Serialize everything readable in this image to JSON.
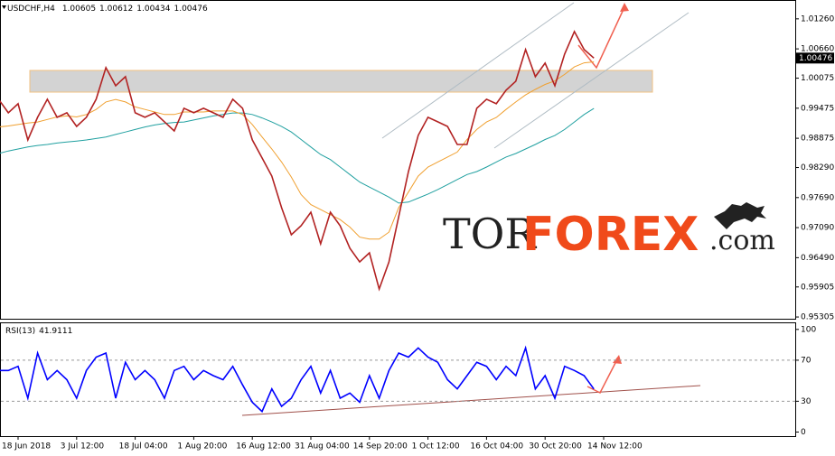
{
  "watermark": {
    "prefix": "TOR",
    "brand": "FOREX",
    "suffix": ".com"
  },
  "chart_data": [
    {
      "type": "line",
      "title": "USDCHF,H4",
      "ohlc": [
        1.00605,
        1.00612,
        1.00434,
        1.00476
      ],
      "last_price": 1.00476,
      "ylim": [
        0.9527,
        1.016
      ],
      "yticks": [
        {
          "value": 1.0126,
          "label": "1.01260"
        },
        {
          "value": 1.0066,
          "label": "1.00660"
        },
        {
          "value": 1.00075,
          "label": "1.00075"
        },
        {
          "value": 0.99475,
          "label": "0.99475"
        },
        {
          "value": 0.98875,
          "label": "0.98875"
        },
        {
          "value": 0.9829,
          "label": "0.98290"
        },
        {
          "value": 0.9769,
          "label": "0.97690"
        },
        {
          "value": 0.9709,
          "label": "0.97090"
        },
        {
          "value": 0.9649,
          "label": "0.96490"
        },
        {
          "value": 0.95905,
          "label": "0.95905"
        },
        {
          "value": 0.95305,
          "label": "0.95305"
        }
      ],
      "grid": false,
      "series": [
        {
          "color": "#b22222",
          "values": [
            0.99654,
            0.99383,
            0.99564,
            0.98842,
            0.99293,
            0.99654,
            0.99293,
            0.99383,
            0.99112,
            0.99293,
            0.99654,
            1.00285,
            0.99924,
            1.00105,
            0.99383,
            0.99293,
            0.99383,
            0.99203,
            0.99022,
            0.99473,
            0.99383,
            0.99473,
            0.99383,
            0.99293,
            0.99654,
            0.99473,
            0.98842,
            0.98481,
            0.9812,
            0.97488,
            0.96947,
            0.97127,
            0.97398,
            0.96766,
            0.97398,
            0.97127,
            0.96676,
            0.96405,
            0.96586,
            0.95864,
            0.96405,
            0.97308,
            0.9821,
            0.98932,
            0.99293,
            0.99203,
            0.99112,
            0.98751,
            0.98751,
            0.99473,
            0.99654,
            0.99564,
            0.99834,
            1.00015,
            1.00646,
            1.00105,
            1.00376,
            0.99924,
            1.00556,
            1.01007,
            1.00646,
            1.00476,
            null
          ]
        },
        {
          "color": "#f0a030",
          "values": [
            0.991,
            0.9912,
            0.9915,
            0.9918,
            0.992,
            0.9925,
            0.993,
            0.9932,
            0.993,
            0.9935,
            0.9945,
            0.996,
            0.9965,
            0.996,
            0.995,
            0.9945,
            0.994,
            0.9935,
            0.9935,
            0.994,
            0.994,
            0.994,
            0.9942,
            0.9942,
            0.9942,
            0.9935,
            0.9915,
            0.989,
            0.9866,
            0.984,
            0.981,
            0.9775,
            0.9755,
            0.9745,
            0.9735,
            0.9725,
            0.971,
            0.969,
            0.9686,
            0.9686,
            0.97,
            0.9749,
            0.978,
            0.9812,
            0.983,
            0.984,
            0.985,
            0.986,
            0.9885,
            0.9905,
            0.992,
            0.9929,
            0.9945,
            0.996,
            0.9974,
            0.9985,
            0.9995,
            1.0002,
            1.0015,
            1.003,
            1.0038,
            1.004,
            null
          ]
        },
        {
          "color": "#20a0a0",
          "values": [
            0.9857,
            0.9862,
            0.9866,
            0.987,
            0.9873,
            0.9875,
            0.9878,
            0.988,
            0.9882,
            0.9884,
            0.9887,
            0.989,
            0.9895,
            0.99,
            0.9905,
            0.991,
            0.9914,
            0.9917,
            0.9919,
            0.992,
            0.9924,
            0.9928,
            0.9932,
            0.9935,
            0.9938,
            0.9938,
            0.9935,
            0.9928,
            0.992,
            0.9911,
            0.99,
            0.9885,
            0.987,
            0.9855,
            0.9845,
            0.983,
            0.9815,
            0.98,
            0.979,
            0.978,
            0.977,
            0.9758,
            0.976,
            0.9768,
            0.9776,
            0.9785,
            0.9795,
            0.9805,
            0.9815,
            0.9821,
            0.983,
            0.984,
            0.985,
            0.9857,
            0.9866,
            0.9875,
            0.9885,
            0.9893,
            0.9905,
            0.992,
            0.9935,
            0.9947,
            null
          ]
        }
      ]
    },
    {
      "type": "line",
      "title": "RSI(13)",
      "last_value": 41.9111,
      "ylim": [
        -4,
        106
      ],
      "yticks": [
        100,
        70,
        30,
        0
      ],
      "dotted_grid": [
        70,
        30
      ],
      "categories": [
        null,
        null,
        "18 Jun 2018",
        null,
        null,
        null,
        null,
        null,
        "3 Jul 12:00",
        null,
        null,
        null,
        null,
        null,
        "18 Jul 04:00",
        null,
        null,
        null,
        null,
        null,
        "1 Aug 20:00",
        null,
        null,
        null,
        null,
        null,
        "16 Aug 12:00",
        null,
        null,
        null,
        null,
        null,
        "31 Aug 04:00",
        null,
        null,
        null,
        null,
        null,
        "14 Sep 20:00",
        null,
        null,
        null,
        null,
        null,
        "1 Oct 12:00",
        null,
        null,
        null,
        null,
        null,
        "16 Oct 04:00",
        null,
        null,
        null,
        null,
        null,
        "30 Oct 20:00",
        null,
        null,
        null,
        null,
        null,
        "14 Nov 12:00"
      ],
      "series": [
        {
          "color": "#0000ff",
          "values": [
            60,
            60,
            64,
            33,
            77,
            51,
            60,
            51,
            33,
            60,
            73,
            77,
            33,
            68,
            51,
            60,
            51,
            33,
            60,
            64,
            51,
            60,
            55,
            51,
            64,
            46,
            29,
            20,
            42,
            25,
            33,
            51,
            64,
            38,
            60,
            33,
            38,
            29,
            55,
            33,
            60,
            77,
            73,
            82,
            73,
            68,
            51,
            42,
            55,
            68,
            64,
            51,
            64,
            55,
            82,
            42,
            55,
            33,
            64,
            60,
            55,
            41.9111,
            null
          ]
        }
      ]
    }
  ]
}
